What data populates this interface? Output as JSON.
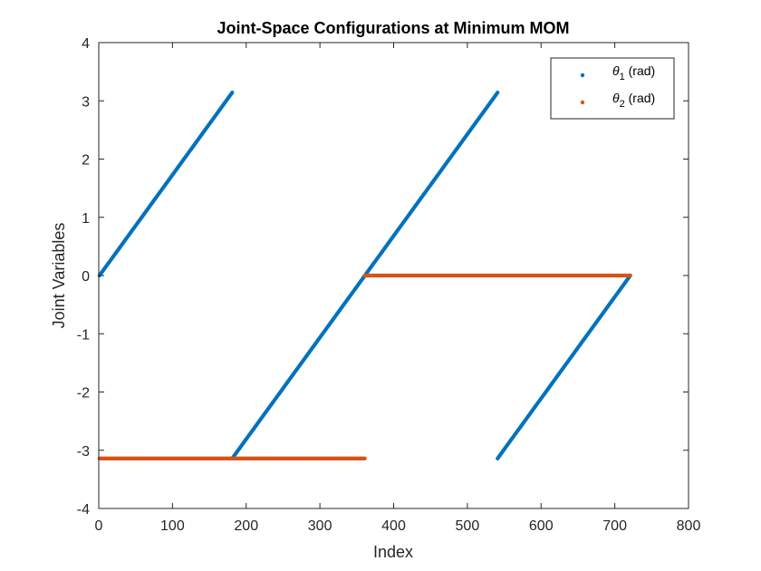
{
  "chart_data": {
    "type": "scatter",
    "title": "Joint-Space Configurations at Minimum MOM",
    "xlabel": "Index",
    "ylabel": "Joint Variables",
    "xlim": [
      0,
      800
    ],
    "ylim": [
      -4,
      4
    ],
    "xticks": [
      0,
      100,
      200,
      300,
      400,
      500,
      600,
      700,
      800
    ],
    "yticks": [
      -4,
      -3,
      -2,
      -1,
      0,
      1,
      2,
      3,
      4
    ],
    "xtick_labels": [
      "0",
      "100",
      "200",
      "300",
      "400",
      "500",
      "600",
      "700",
      "800"
    ],
    "ytick_labels": [
      "-4",
      "-3",
      "-2",
      "-1",
      "0",
      "1",
      "2",
      "3",
      "4"
    ],
    "grid": false,
    "legend_position": "top-right",
    "series": [
      {
        "name": "θ1 (rad)",
        "legend_symbol": "θ",
        "legend_subscript": "1",
        "legend_suffix": " (rad)",
        "color": "#0072BD",
        "segments": [
          {
            "x": [
              1,
              181
            ],
            "y": [
              0,
              3.1416
            ]
          },
          {
            "x": [
              181,
              541
            ],
            "y": [
              -3.1416,
              3.1416
            ]
          },
          {
            "x": [
              541,
              721
            ],
            "y": [
              -3.1416,
              0
            ]
          }
        ]
      },
      {
        "name": "θ2 (rad)",
        "legend_symbol": "θ",
        "legend_subscript": "2",
        "legend_suffix": " (rad)",
        "color": "#D95319",
        "segments": [
          {
            "x": [
              1,
              361
            ],
            "y": [
              -3.1416,
              -3.1416
            ]
          },
          {
            "x": [
              361,
              721
            ],
            "y": [
              0,
              0
            ]
          }
        ]
      }
    ]
  }
}
